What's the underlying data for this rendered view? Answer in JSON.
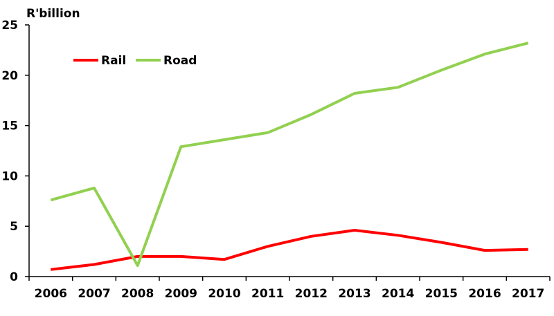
{
  "chart_data": {
    "type": "line",
    "y_unit": "R'billion",
    "x": [
      "2006",
      "2007",
      "2008",
      "2009",
      "2010",
      "2011",
      "2012",
      "2013",
      "2014",
      "2015",
      "2016",
      "2017"
    ],
    "y_ticks": [
      "0",
      "5",
      "10",
      "15",
      "20",
      "25"
    ],
    "ylim": [
      0,
      25
    ],
    "grid": false,
    "legend_position": "top-left",
    "series": [
      {
        "name": "Rail",
        "color": "#ff0000",
        "values": [
          0.7,
          1.2,
          2.0,
          2.0,
          1.7,
          3.0,
          4.0,
          4.6,
          4.1,
          3.4,
          2.6,
          2.7
        ]
      },
      {
        "name": "Road",
        "color": "#92d050",
        "values": [
          7.6,
          8.8,
          1.1,
          12.9,
          13.6,
          14.3,
          16.1,
          18.2,
          18.8,
          20.5,
          22.1,
          23.2
        ]
      }
    ]
  }
}
